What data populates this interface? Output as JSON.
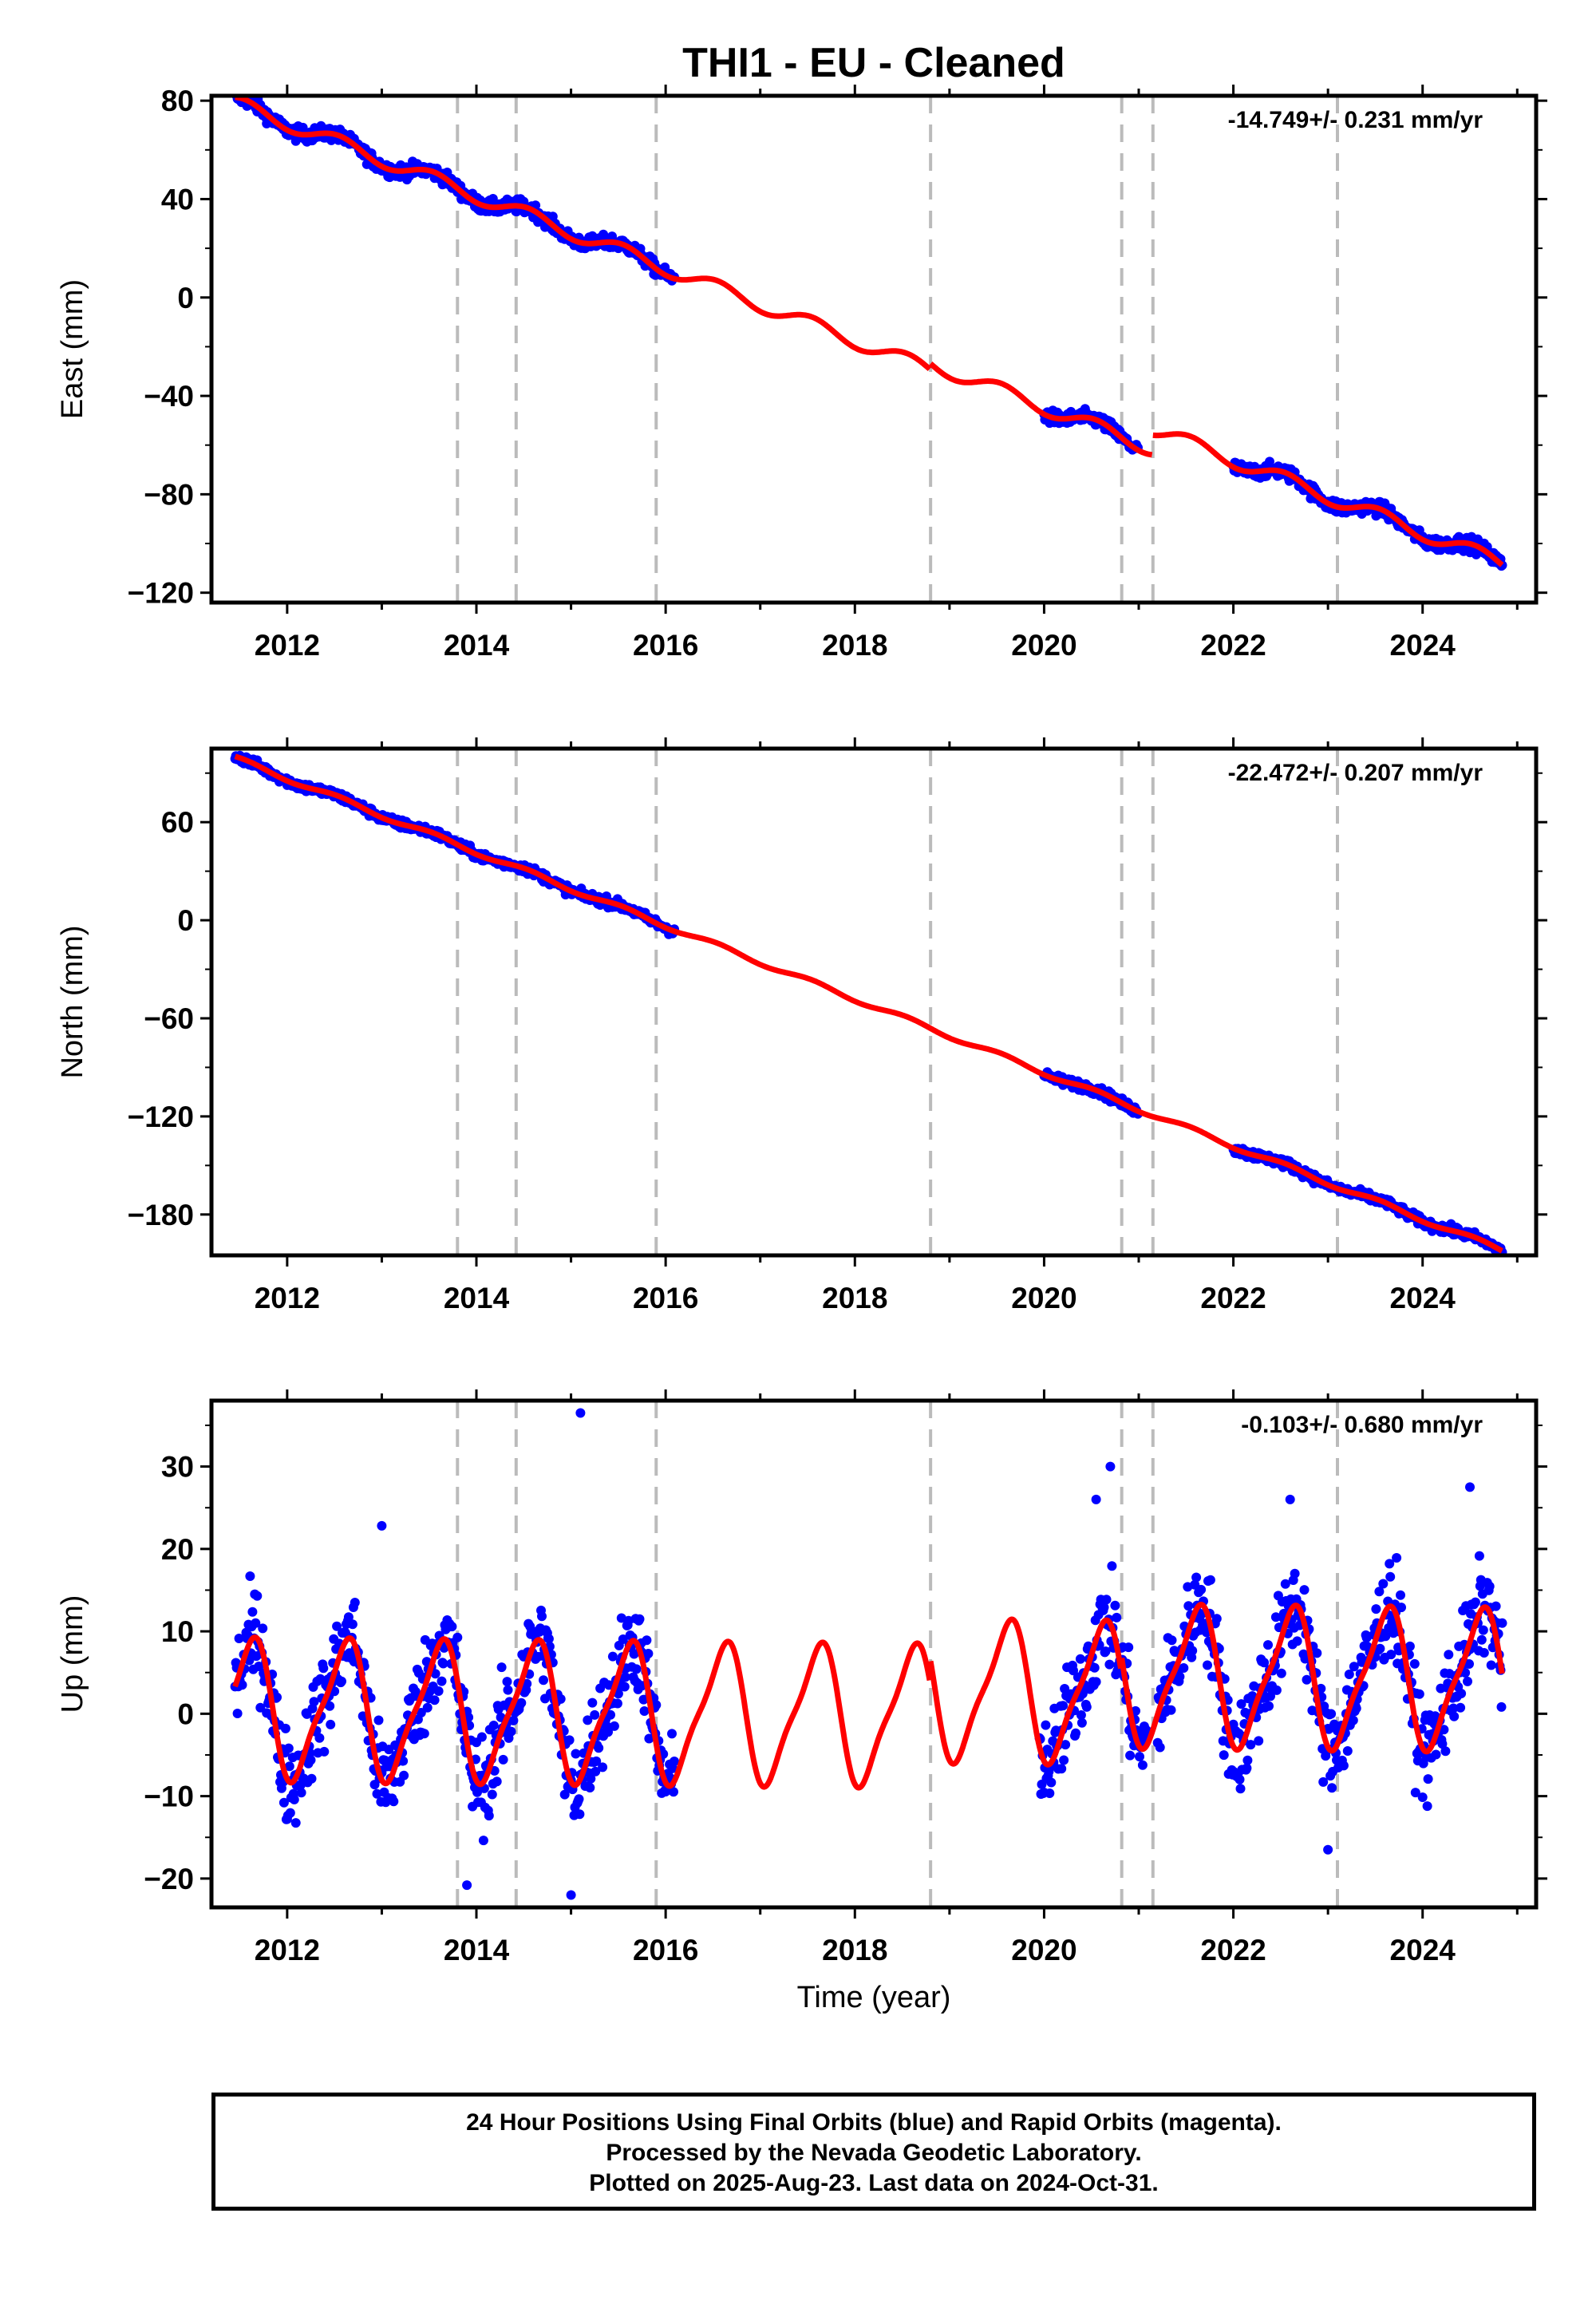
{
  "chart_data": {
    "title": "THI1  - EU - Cleaned",
    "xlabel": "Time (year)",
    "x_ticks": [
      "2012",
      "2014",
      "2016",
      "2018",
      "2020",
      "2022",
      "2024"
    ],
    "xlim": [
      2011.2,
      2025.2
    ],
    "event_lines": [
      2013.8,
      2014.42,
      2015.9,
      2018.8,
      2020.82,
      2021.15,
      2023.1
    ],
    "colors": {
      "final_orbits": "#0000ff",
      "model": "#ff0000",
      "event_line": "#bbbbbb"
    },
    "panels": [
      {
        "type": "scatter",
        "component": "East",
        "ylabel": "East (mm)",
        "rate_label": "-14.749+/- 0.231 mm/yr",
        "ylim": [
          -124,
          82
        ],
        "yticks": [
          80,
          40,
          0,
          -40,
          -80,
          -120
        ],
        "rate": -14.749,
        "model": {
          "ref_year": 2011.45,
          "offset": 79,
          "annual_amp": 3.0,
          "annual_phase": 0.3,
          "steps": [
            {
              "year": 2018.8,
              "size": 2.5
            },
            {
              "year": 2021.15,
              "size": 8.0
            }
          ]
        },
        "data_segments": [
          [
            2011.45,
            2016.1
          ],
          [
            2020.0,
            2021.0
          ],
          [
            2022.0,
            2024.85
          ]
        ],
        "scatter_noise": 2.0
      },
      {
        "type": "scatter",
        "component": "North",
        "ylabel": "North (mm)",
        "rate_label": "-22.472+/- 0.207 mm/yr",
        "ylim": [
          -205,
          105
        ],
        "yticks": [
          60,
          0,
          -60,
          -120,
          -180
        ],
        "rate": -22.472,
        "model": {
          "ref_year": 2011.45,
          "offset": 99,
          "annual_amp": 1.5,
          "annual_phase": 0.3,
          "steps": []
        },
        "data_segments": [
          [
            2011.45,
            2016.1
          ],
          [
            2020.0,
            2021.0
          ],
          [
            2022.0,
            2024.85
          ]
        ],
        "scatter_noise": 2.0
      },
      {
        "type": "scatter",
        "component": "Up",
        "ylabel": "Up (mm)",
        "rate_label": "-0.103+/- 0.680 mm/yr",
        "ylim": [
          -23.5,
          38
        ],
        "yticks": [
          30,
          20,
          10,
          0,
          -10,
          -20
        ],
        "rate": -0.103,
        "model": {
          "ref_year": 2011.45,
          "offset": 0.5,
          "annual_amp": 8.0,
          "annual_phase": 0.35,
          "steps": [
            {
              "year": 2018.8,
              "size": 3.0
            },
            {
              "year": 2020.82,
              "size": 2.0
            }
          ]
        },
        "data_segments": [
          [
            2011.45,
            2016.1
          ],
          [
            2019.95,
            2021.1
          ],
          [
            2021.2,
            2024.85
          ]
        ],
        "scatter_noise": 4.0,
        "outliers": [
          [
            2015.1,
            36.5
          ],
          [
            2020.7,
            30.0
          ],
          [
            2024.5,
            27.5
          ],
          [
            2022.6,
            26.0
          ],
          [
            2020.55,
            26.0
          ],
          [
            2013.0,
            22.8
          ],
          [
            2015.0,
            -22.0
          ],
          [
            2013.9,
            -20.8
          ],
          [
            2023.0,
            -16.5
          ]
        ]
      }
    ]
  },
  "footer": {
    "line1": "24 Hour Positions Using Final Orbits (blue) and Rapid Orbits (magenta).",
    "line2": "Processed by the Nevada Geodetic Laboratory.",
    "line3": "Plotted on 2025-Aug-23. Last data on 2024-Oct-31."
  }
}
